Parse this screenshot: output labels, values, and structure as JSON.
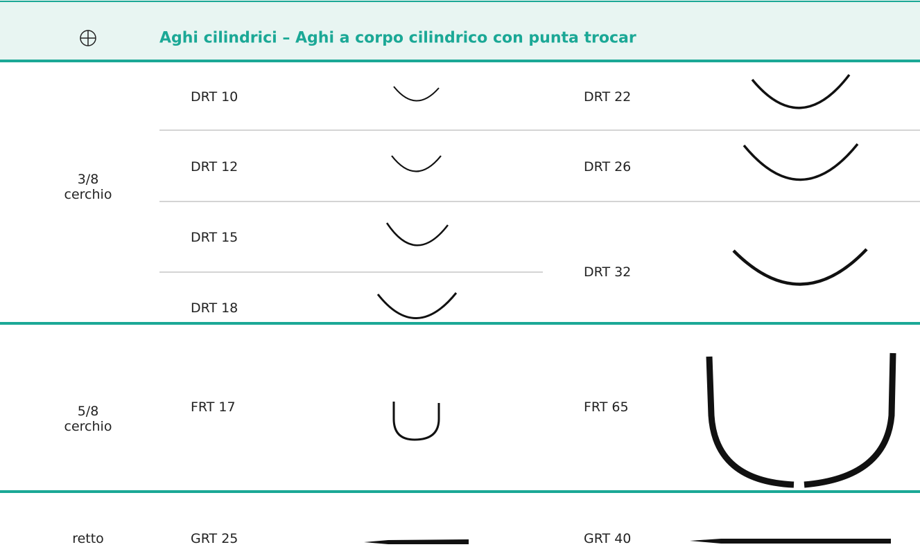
{
  "header": {
    "title": "Aghi cilindrici – Aghi a corpo cilindrico con punta trocar"
  },
  "rows": [
    {
      "label": "3/8 cerchio",
      "left": [
        "DRT 10",
        "DRT 12",
        "DRT 15",
        "DRT 18"
      ],
      "right": [
        "DRT 22",
        "DRT 26",
        "DRT 32"
      ]
    },
    {
      "label": "5/8 cerchio",
      "left": [
        "FRT 17"
      ],
      "right": [
        "FRT 65"
      ]
    },
    {
      "label": "retto",
      "left": [
        "GRT 25"
      ],
      "right": [
        "GRT 40"
      ]
    }
  ]
}
